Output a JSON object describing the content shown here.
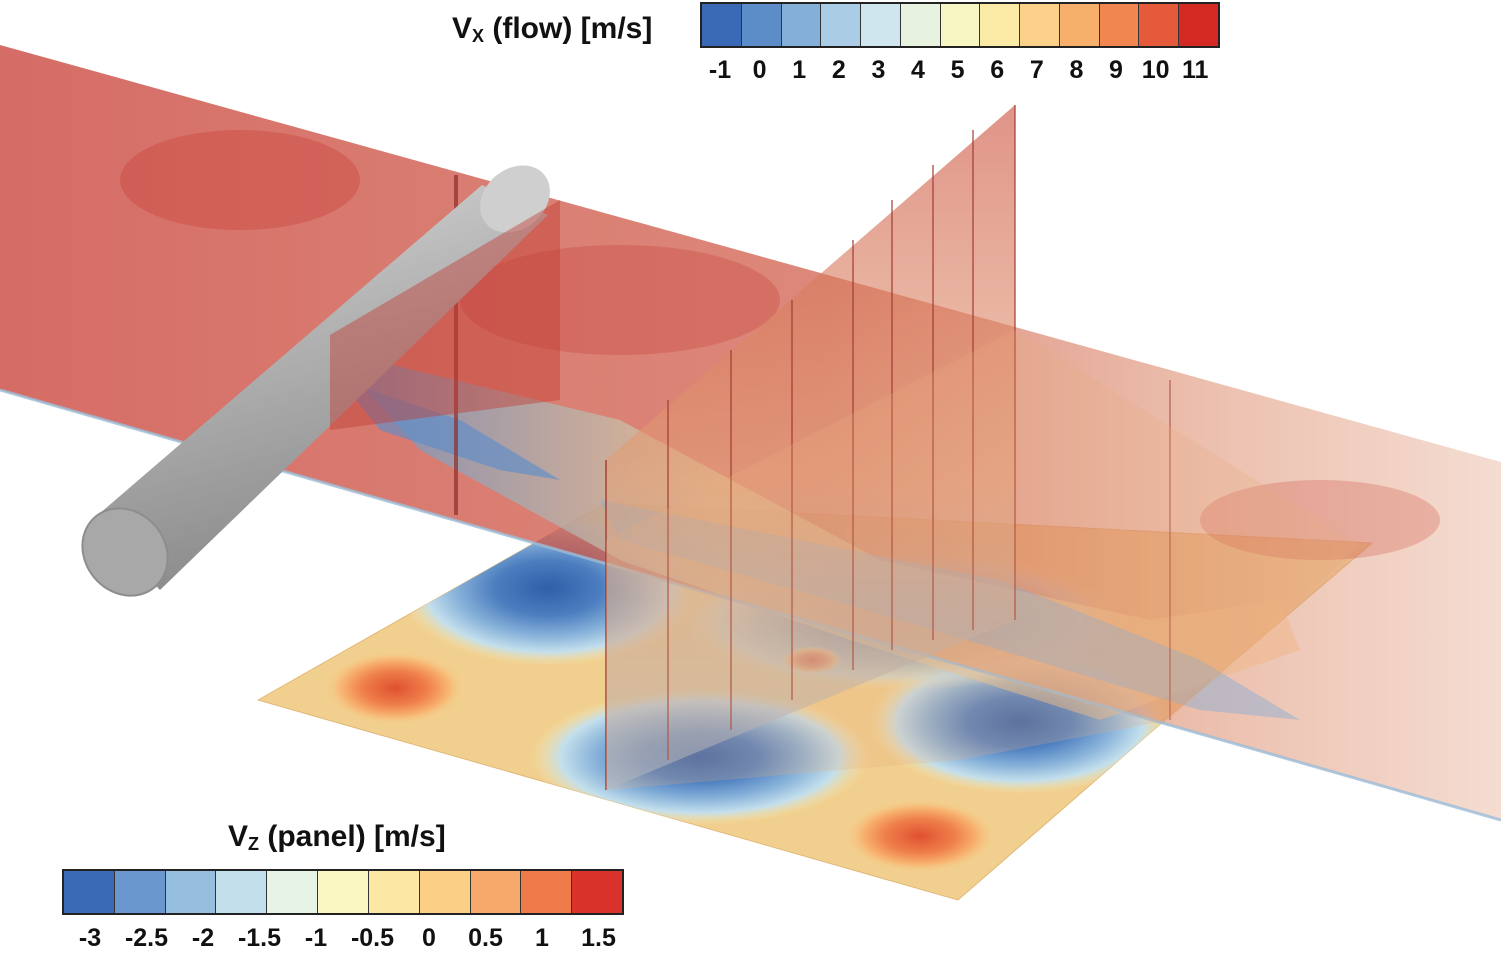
{
  "colorbars": {
    "flow": {
      "title_prefix": "V",
      "title_sub": "X",
      "title_suffix": " (flow) [m/s]",
      "tick_labels": [
        "-1",
        "0",
        "1",
        "2",
        "3",
        "4",
        "5",
        "6",
        "7",
        "8",
        "9",
        "10",
        "11"
      ],
      "colors": [
        "#3a6ab6",
        "#5d8dc9",
        "#83afd9",
        "#aacce4",
        "#cfe6ee",
        "#e8f3df",
        "#f7f6c3",
        "#fbe9a6",
        "#fbd189",
        "#f7b06c",
        "#f18650",
        "#e55a3a",
        "#d52a23"
      ]
    },
    "panel": {
      "title_prefix": "V",
      "title_sub": "Z",
      "title_suffix": " (panel) [m/s]",
      "tick_labels": [
        "-3",
        "-2.5",
        "-2",
        "-1.5",
        "-1",
        "-0.5",
        "0",
        "0.5",
        "1",
        "1.5"
      ],
      "colors": [
        "#3a6ab6",
        "#6a97cd",
        "#96bedd",
        "#c3dfec",
        "#e6f3e6",
        "#fbf7c2",
        "#fce7a4",
        "#fbcf86",
        "#f6a96a",
        "#ef7b4b",
        "#d8322a"
      ]
    }
  }
}
